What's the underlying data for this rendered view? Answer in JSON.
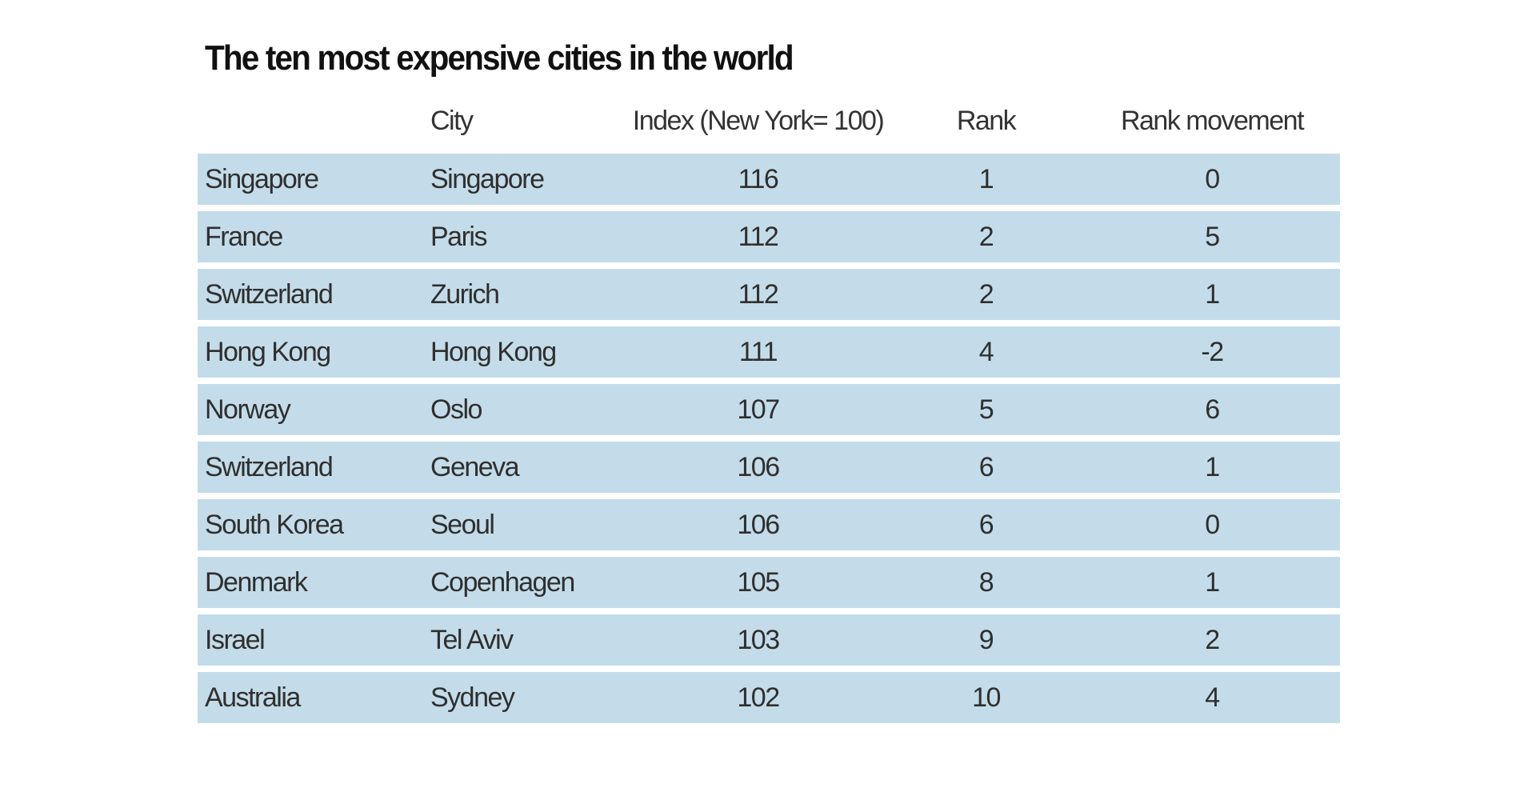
{
  "chart_data": {
    "type": "table",
    "title": "The ten most expensive cities in the world",
    "columns": [
      "",
      "City",
      "Index (New York= 100)",
      "Rank",
      "Rank movement"
    ],
    "rows": [
      [
        "Singapore",
        "Singapore",
        "116",
        "1",
        "0"
      ],
      [
        "France",
        "Paris",
        "112",
        "2",
        "5"
      ],
      [
        "Switzerland",
        "Zurich",
        "112",
        "2",
        "1"
      ],
      [
        "Hong Kong",
        "Hong Kong",
        "111",
        "4",
        "-2"
      ],
      [
        "Norway",
        "Oslo",
        "107",
        "5",
        "6"
      ],
      [
        "Switzerland",
        "Geneva",
        "106",
        "6",
        "1"
      ],
      [
        "South Korea",
        "Seoul",
        "106",
        "6",
        "0"
      ],
      [
        "Denmark",
        "Copenhagen",
        "105",
        "8",
        "1"
      ],
      [
        "Israel",
        "Tel Aviv",
        "103",
        "9",
        "2"
      ],
      [
        "Australia",
        "Sydney",
        "102",
        "10",
        "4"
      ]
    ],
    "row_color": "#c4dce9"
  }
}
